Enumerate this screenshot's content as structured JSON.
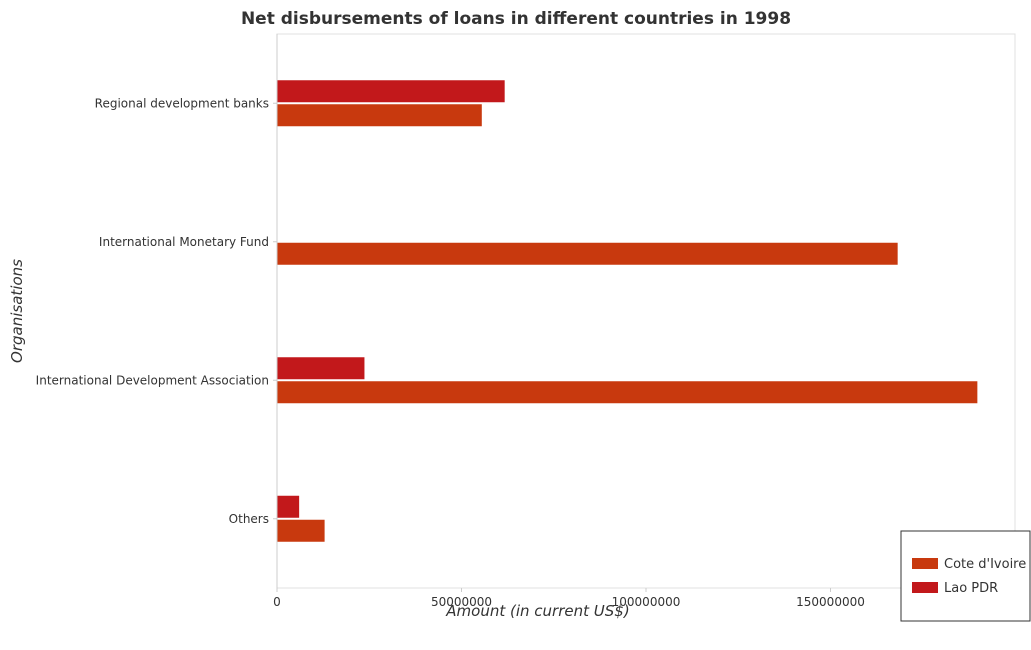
{
  "chart_data": {
    "type": "bar",
    "orientation": "horizontal",
    "title": "Net disbursements of loans in different countries in 1998",
    "xlabel": "Amount (in current US$)",
    "ylabel": "Organisations",
    "categories": [
      "Regional development banks",
      "International Monetary Fund",
      "International Development Association",
      "Others"
    ],
    "series": [
      {
        "name": "Cote d'Ivoire",
        "color": "#c8390e",
        "values": [
          55500000,
          168200000,
          189800000,
          12900000
        ]
      },
      {
        "name": "Lao PDR",
        "color": "#c2181b",
        "values": [
          61700000,
          0,
          23700000,
          6000000
        ]
      }
    ],
    "xlim": [
      0,
      200000000
    ],
    "xticks": [
      0,
      50000000,
      100000000,
      150000000
    ],
    "xtick_labels": [
      "0",
      "50000000",
      "100000000",
      "150000000"
    ],
    "grid": false,
    "legend_position": "bottom-right"
  }
}
